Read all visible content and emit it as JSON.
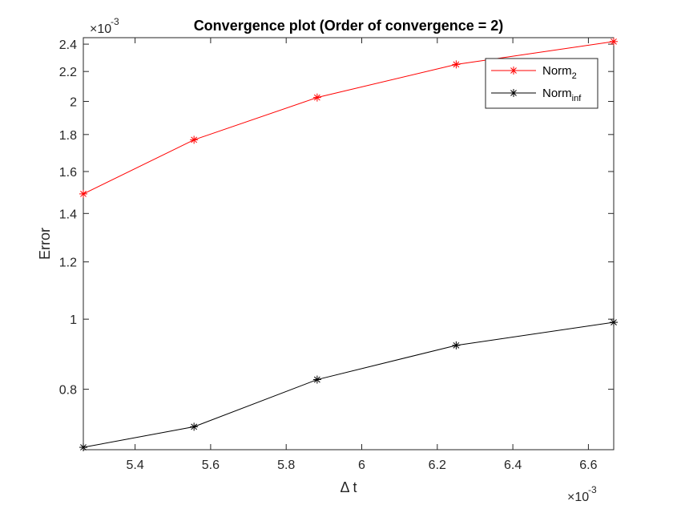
{
  "chart_data": {
    "type": "line",
    "title": "Convergence plot (Order of convergence = 2)",
    "xlabel": "Δ t",
    "ylabel": "Error",
    "x_exponent_label": "×10",
    "x_exponent_power": "-3",
    "y_exponent_label": "×10",
    "y_exponent_power": "-3",
    "xscale": "linear",
    "yscale": "log",
    "xlim": [
      5.263,
      6.667
    ],
    "ylim": [
      0.66,
      2.45
    ],
    "x_ticks": [
      5.4,
      5.6,
      5.8,
      6.0,
      6.2,
      6.4,
      6.6
    ],
    "x_tick_labels": [
      "5.4",
      "5.6",
      "5.8",
      "6",
      "6.2",
      "6.4",
      "6.6"
    ],
    "y_ticks": [
      0.8,
      1.0,
      1.2,
      1.4,
      1.6,
      1.8,
      2.0,
      2.2,
      2.4
    ],
    "y_tick_labels": [
      "0.8",
      "1",
      "1.2",
      "1.4",
      "1.6",
      "1.8",
      "2",
      "2.2",
      "2.4"
    ],
    "grid": false,
    "legend_position": "top-right",
    "x": [
      5.263,
      5.556,
      5.882,
      6.25,
      6.667
    ],
    "series": [
      {
        "name": "Norm",
        "name_sub": "2",
        "color": "#ff0000",
        "marker": "asterisk",
        "values": [
          1.49,
          1.77,
          2.025,
          2.25,
          2.42
        ]
      },
      {
        "name": "Norm",
        "name_sub": "inf",
        "color": "#000000",
        "marker": "asterisk",
        "values": [
          0.665,
          0.71,
          0.825,
          0.92,
          0.99
        ]
      }
    ]
  }
}
